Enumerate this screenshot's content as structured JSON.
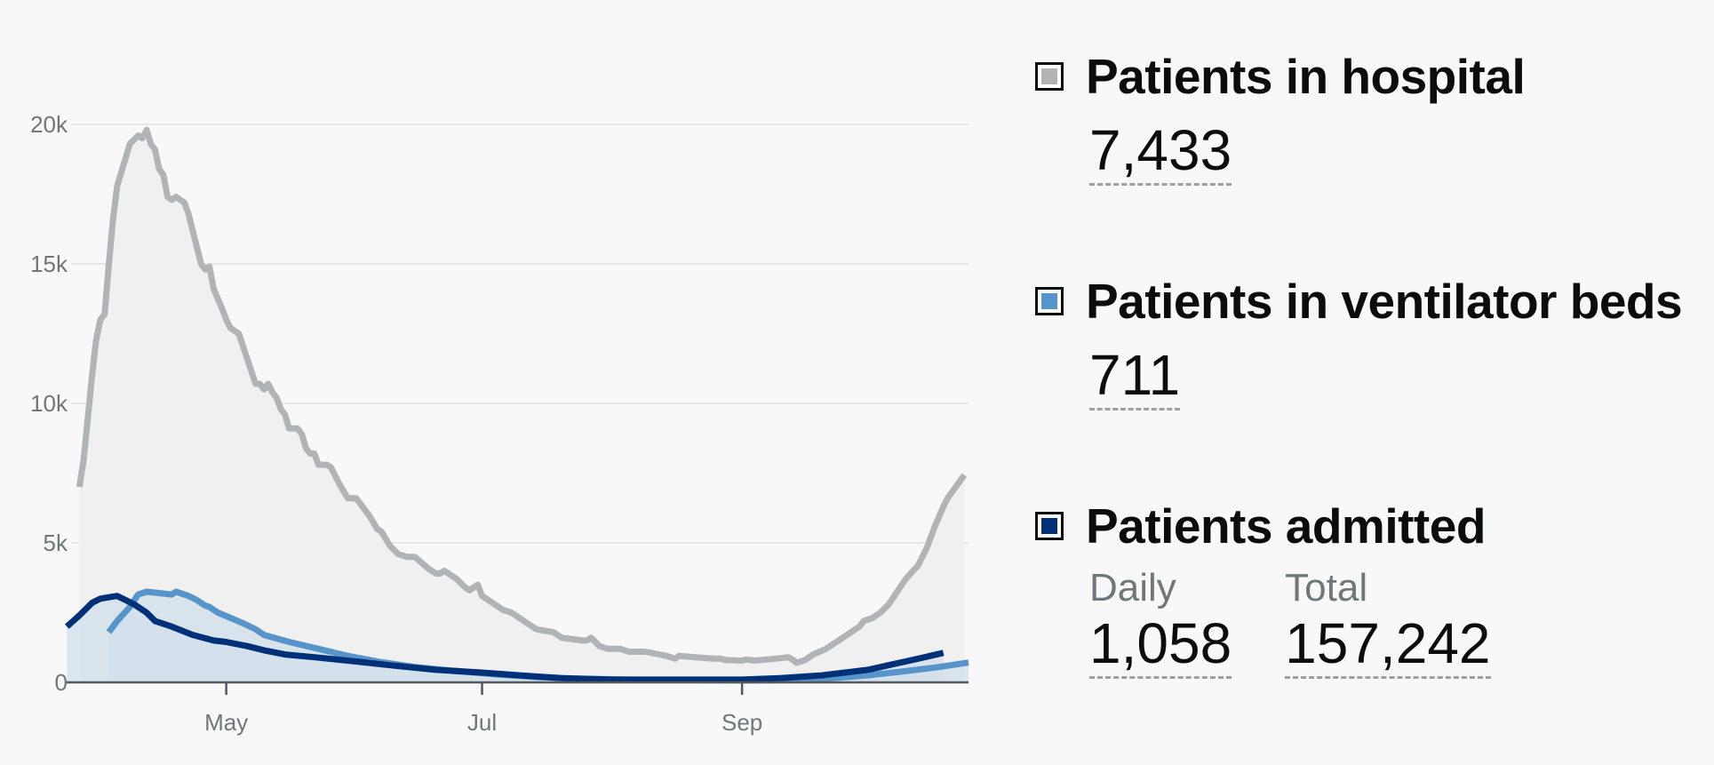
{
  "chart_data": {
    "type": "area",
    "x_type": "date",
    "x_ticks": [
      {
        "date": "2020-05-01",
        "label": "May"
      },
      {
        "date": "2020-07-01",
        "label": "Jul"
      },
      {
        "date": "2020-09-01",
        "label": "Sep"
      }
    ],
    "y_ticks": [
      {
        "value": 0,
        "label": "0"
      },
      {
        "value": 5000,
        "label": "5k"
      },
      {
        "value": 10000,
        "label": "10k"
      },
      {
        "value": 15000,
        "label": "15k"
      },
      {
        "value": 20000,
        "label": "20k"
      }
    ],
    "xlim": [
      "2020-03-25",
      "2020-10-25"
    ],
    "ylim": [
      0,
      20000
    ],
    "grid": "horizontal",
    "series": [
      {
        "name": "Patients in hospital",
        "color": "#b1b4b6",
        "fill": "#f0f0f0",
        "points": [
          [
            "2020-03-27",
            7000
          ],
          [
            "2020-03-28",
            8000
          ],
          [
            "2020-03-30",
            11000
          ],
          [
            "2020-03-31",
            12300
          ],
          [
            "2020-04-01",
            13000
          ],
          [
            "2020-04-02",
            13200
          ],
          [
            "2020-04-03",
            15000
          ],
          [
            "2020-04-04",
            16600
          ],
          [
            "2020-04-05",
            17800
          ],
          [
            "2020-04-07",
            18800
          ],
          [
            "2020-04-08",
            19300
          ],
          [
            "2020-04-10",
            19600
          ],
          [
            "2020-04-11",
            19500
          ],
          [
            "2020-04-12",
            19800
          ],
          [
            "2020-04-13",
            19300
          ],
          [
            "2020-04-14",
            19100
          ],
          [
            "2020-04-15",
            18400
          ],
          [
            "2020-04-16",
            18200
          ],
          [
            "2020-04-17",
            17400
          ],
          [
            "2020-04-18",
            17300
          ],
          [
            "2020-04-19",
            17400
          ],
          [
            "2020-04-21",
            17200
          ],
          [
            "2020-04-22",
            16800
          ],
          [
            "2020-04-25",
            15000
          ],
          [
            "2020-04-26",
            14800
          ],
          [
            "2020-04-27",
            14900
          ],
          [
            "2020-04-28",
            14100
          ],
          [
            "2020-04-30",
            13400
          ],
          [
            "2020-05-01",
            13000
          ],
          [
            "2020-05-02",
            12700
          ],
          [
            "2020-05-04",
            12500
          ],
          [
            "2020-05-06",
            11600
          ],
          [
            "2020-05-08",
            10700
          ],
          [
            "2020-05-09",
            10700
          ],
          [
            "2020-05-10",
            10500
          ],
          [
            "2020-05-11",
            10700
          ],
          [
            "2020-05-12",
            10400
          ],
          [
            "2020-05-13",
            10200
          ],
          [
            "2020-05-14",
            9800
          ],
          [
            "2020-05-15",
            9600
          ],
          [
            "2020-05-16",
            9100
          ],
          [
            "2020-05-18",
            9100
          ],
          [
            "2020-05-19",
            8900
          ],
          [
            "2020-05-20",
            8400
          ],
          [
            "2020-05-21",
            8200
          ],
          [
            "2020-05-22",
            8200
          ],
          [
            "2020-05-23",
            7800
          ],
          [
            "2020-05-25",
            7800
          ],
          [
            "2020-05-26",
            7700
          ],
          [
            "2020-05-28",
            7100
          ],
          [
            "2020-05-30",
            6600
          ],
          [
            "2020-06-01",
            6600
          ],
          [
            "2020-06-04",
            6000
          ],
          [
            "2020-06-06",
            5500
          ],
          [
            "2020-06-07",
            5400
          ],
          [
            "2020-06-09",
            4900
          ],
          [
            "2020-06-11",
            4600
          ],
          [
            "2020-06-13",
            4500
          ],
          [
            "2020-06-15",
            4500
          ],
          [
            "2020-06-18",
            4100
          ],
          [
            "2020-06-20",
            3900
          ],
          [
            "2020-06-21",
            3900
          ],
          [
            "2020-06-22",
            4000
          ],
          [
            "2020-06-25",
            3700
          ],
          [
            "2020-06-27",
            3400
          ],
          [
            "2020-06-28",
            3300
          ],
          [
            "2020-06-29",
            3400
          ],
          [
            "2020-06-30",
            3500
          ],
          [
            "2020-07-01",
            3100
          ],
          [
            "2020-07-04",
            2800
          ],
          [
            "2020-07-06",
            2600
          ],
          [
            "2020-07-08",
            2500
          ],
          [
            "2020-07-10",
            2300
          ],
          [
            "2020-07-12",
            2100
          ],
          [
            "2020-07-14",
            1900
          ],
          [
            "2020-07-18",
            1800
          ],
          [
            "2020-07-20",
            1600
          ],
          [
            "2020-07-25",
            1500
          ],
          [
            "2020-07-26",
            1500
          ],
          [
            "2020-07-27",
            1600
          ],
          [
            "2020-07-29",
            1300
          ],
          [
            "2020-07-31",
            1200
          ],
          [
            "2020-08-03",
            1200
          ],
          [
            "2020-08-05",
            1100
          ],
          [
            "2020-08-09",
            1100
          ],
          [
            "2020-08-14",
            950
          ],
          [
            "2020-08-16",
            850
          ],
          [
            "2020-08-17",
            950
          ],
          [
            "2020-08-21",
            900
          ],
          [
            "2020-08-25",
            850
          ],
          [
            "2020-08-27",
            850
          ],
          [
            "2020-08-28",
            800
          ],
          [
            "2020-09-01",
            780
          ],
          [
            "2020-09-02",
            820
          ],
          [
            "2020-09-04",
            780
          ],
          [
            "2020-09-09",
            850
          ],
          [
            "2020-09-12",
            900
          ],
          [
            "2020-09-13",
            820
          ],
          [
            "2020-09-14",
            700
          ],
          [
            "2020-09-16",
            800
          ],
          [
            "2020-09-18",
            1000
          ],
          [
            "2020-09-21",
            1200
          ],
          [
            "2020-09-24",
            1500
          ],
          [
            "2020-09-26",
            1700
          ],
          [
            "2020-09-28",
            1900
          ],
          [
            "2020-09-29",
            2000
          ],
          [
            "2020-09-30",
            2200
          ],
          [
            "2020-10-02",
            2300
          ],
          [
            "2020-10-04",
            2500
          ],
          [
            "2020-10-06",
            2800
          ],
          [
            "2020-10-10",
            3700
          ],
          [
            "2020-10-13",
            4200
          ],
          [
            "2020-10-15",
            4800
          ],
          [
            "2020-10-17",
            5600
          ],
          [
            "2020-10-19",
            6300
          ],
          [
            "2020-10-20",
            6600
          ],
          [
            "2020-10-24",
            7433
          ]
        ]
      },
      {
        "name": "Patients in ventilator beds",
        "color": "#5694ca",
        "fill": "#d2dfeb",
        "points": [
          [
            "2020-04-03",
            1800
          ],
          [
            "2020-04-05",
            2200
          ],
          [
            "2020-04-08",
            2700
          ],
          [
            "2020-04-10",
            3150
          ],
          [
            "2020-04-12",
            3250
          ],
          [
            "2020-04-15",
            3200
          ],
          [
            "2020-04-18",
            3150
          ],
          [
            "2020-04-19",
            3250
          ],
          [
            "2020-04-22",
            3100
          ],
          [
            "2020-04-24",
            2950
          ],
          [
            "2020-04-26",
            2750
          ],
          [
            "2020-04-27",
            2700
          ],
          [
            "2020-04-29",
            2500
          ],
          [
            "2020-05-03",
            2250
          ],
          [
            "2020-05-06",
            2050
          ],
          [
            "2020-05-08",
            1900
          ],
          [
            "2020-05-10",
            1700
          ],
          [
            "2020-05-16",
            1450
          ],
          [
            "2020-05-23",
            1200
          ],
          [
            "2020-05-30",
            950
          ],
          [
            "2020-06-06",
            750
          ],
          [
            "2020-06-15",
            550
          ],
          [
            "2020-06-25",
            400
          ],
          [
            "2020-07-05",
            280
          ],
          [
            "2020-07-15",
            180
          ],
          [
            "2020-07-25",
            130
          ],
          [
            "2020-08-05",
            100
          ],
          [
            "2020-08-20",
            80
          ],
          [
            "2020-09-01",
            70
          ],
          [
            "2020-09-10",
            80
          ],
          [
            "2020-09-20",
            120
          ],
          [
            "2020-10-01",
            250
          ],
          [
            "2020-10-10",
            400
          ],
          [
            "2020-10-18",
            550
          ],
          [
            "2020-10-25",
            711
          ]
        ]
      },
      {
        "name": "Patients admitted",
        "color": "#003078",
        "fill": "#d2dfeb",
        "points": [
          [
            "2020-03-24",
            2000
          ],
          [
            "2020-03-27",
            2400
          ],
          [
            "2020-03-30",
            2850
          ],
          [
            "2020-04-01",
            3000
          ],
          [
            "2020-04-03",
            3050
          ],
          [
            "2020-04-05",
            3100
          ],
          [
            "2020-04-07",
            2950
          ],
          [
            "2020-04-09",
            2800
          ],
          [
            "2020-04-12",
            2500
          ],
          [
            "2020-04-14",
            2200
          ],
          [
            "2020-04-18",
            2000
          ],
          [
            "2020-04-23",
            1700
          ],
          [
            "2020-04-28",
            1500
          ],
          [
            "2020-05-01",
            1450
          ],
          [
            "2020-05-06",
            1300
          ],
          [
            "2020-05-10",
            1150
          ],
          [
            "2020-05-15",
            1000
          ],
          [
            "2020-05-22",
            900
          ],
          [
            "2020-06-01",
            750
          ],
          [
            "2020-06-10",
            600
          ],
          [
            "2020-06-20",
            450
          ],
          [
            "2020-07-01",
            350
          ],
          [
            "2020-07-10",
            250
          ],
          [
            "2020-07-20",
            150
          ],
          [
            "2020-08-01",
            100
          ],
          [
            "2020-08-15",
            100
          ],
          [
            "2020-09-01",
            100
          ],
          [
            "2020-09-10",
            150
          ],
          [
            "2020-09-20",
            250
          ],
          [
            "2020-10-01",
            450
          ],
          [
            "2020-10-07",
            650
          ],
          [
            "2020-10-13",
            850
          ],
          [
            "2020-10-19",
            1058
          ]
        ]
      }
    ]
  },
  "legend": {
    "hospital": {
      "title": "Patients in hospital",
      "value": "7,433",
      "color": "#b1b4b6"
    },
    "ventilator": {
      "title": "Patients in ventilator beds",
      "value": "711",
      "color": "#5694ca"
    },
    "admitted": {
      "title": "Patients admitted",
      "color": "#003078",
      "daily_label": "Daily",
      "daily_value": "1,058",
      "total_label": "Total",
      "total_value": "157,242"
    }
  }
}
